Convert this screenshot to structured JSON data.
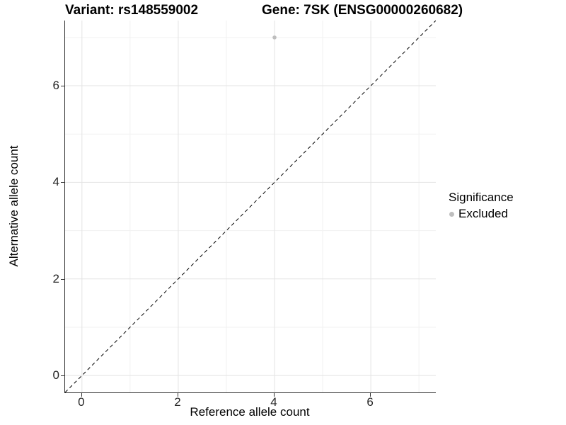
{
  "header": {
    "title_left": "Variant: rs148559002",
    "title_right": "Gene: 7SK (ENSG00000260682)"
  },
  "axes": {
    "x_label": "Reference allele count",
    "y_label": "Alternative allele count"
  },
  "legend": {
    "title": "Significance",
    "items": [
      {
        "label": "Excluded",
        "color": "#bebebe"
      }
    ]
  },
  "chart_data": {
    "type": "scatter",
    "title": "Variant: rs148559002   Gene: 7SK (ENSG00000260682)",
    "xlabel": "Reference allele count",
    "ylabel": "Alternative allele count",
    "xlim": [
      -0.35,
      7.35
    ],
    "ylim": [
      -0.35,
      7.35
    ],
    "x_ticks": [
      0,
      2,
      4,
      6
    ],
    "y_ticks": [
      0,
      2,
      4,
      6
    ],
    "x_minor_ticks": [
      1,
      3,
      5,
      7
    ],
    "y_minor_ticks": [
      1,
      3,
      5,
      7
    ],
    "grid": true,
    "legend_position": "right",
    "series": [
      {
        "name": "Excluded",
        "color": "#bebebe",
        "points": [
          {
            "x": 4,
            "y": 7
          }
        ]
      }
    ],
    "reference_line": {
      "style": "dashed",
      "slope": 1,
      "intercept": 0,
      "color": "#000000"
    },
    "colors": {
      "grid_major": "#e3e3e3",
      "grid_minor": "#f1f1f1",
      "axis": "#333333"
    }
  }
}
